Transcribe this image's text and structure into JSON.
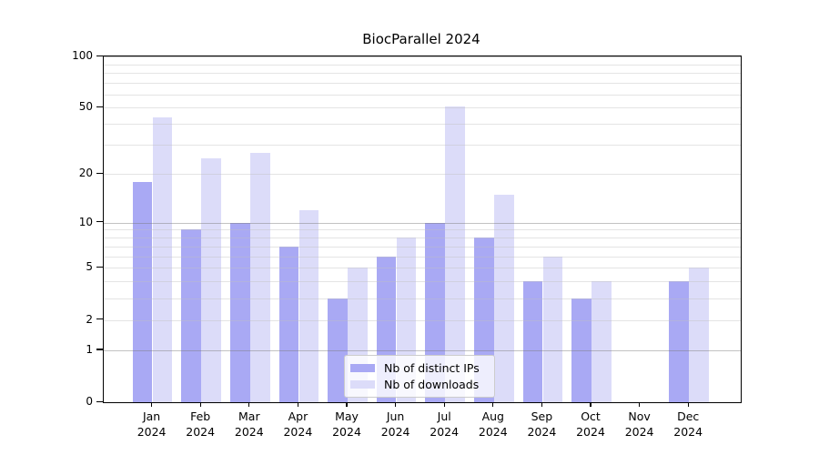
{
  "title": "BiocParallel 2024",
  "colors": {
    "bar_distinct_ips": "#a9a9f4",
    "bar_downloads": "#dcdcf9",
    "grid_major": "#c8c8c8",
    "grid_minor": "#e9e9e9",
    "axis": "#000000",
    "legend_border": "#cccccc"
  },
  "chart_data": {
    "type": "bar",
    "title": "BiocParallel 2024",
    "categories": [
      "Jan 2024",
      "Feb 2024",
      "Mar 2024",
      "Apr 2024",
      "May 2024",
      "Jun 2024",
      "Jul 2024",
      "Aug 2024",
      "Sep 2024",
      "Oct 2024",
      "Nov 2024",
      "Dec 2024"
    ],
    "x_tick_labels": [
      [
        "Jan",
        "2024"
      ],
      [
        "Feb",
        "2024"
      ],
      [
        "Mar",
        "2024"
      ],
      [
        "Apr",
        "2024"
      ],
      [
        "May",
        "2024"
      ],
      [
        "Jun",
        "2024"
      ],
      [
        "Jul",
        "2024"
      ],
      [
        "Aug",
        "2024"
      ],
      [
        "Sep",
        "2024"
      ],
      [
        "Oct",
        "2024"
      ],
      [
        "Nov",
        "2024"
      ],
      [
        "Dec",
        "2024"
      ]
    ],
    "series": [
      {
        "name": "Nb of distinct IPs",
        "color": "#a9a9f4",
        "values": [
          18,
          9,
          10,
          7,
          3,
          6,
          10,
          8,
          4,
          3,
          0,
          4
        ]
      },
      {
        "name": "Nb of downloads",
        "color": "#dcdcf9",
        "values": [
          44,
          25,
          27,
          12,
          5,
          8,
          51,
          15,
          6,
          4,
          0,
          5
        ]
      }
    ],
    "y_axis": {
      "scale": "log1p",
      "ylim": [
        0,
        100
      ],
      "tick_values": [
        0,
        1,
        2,
        5,
        10,
        20,
        50,
        100
      ],
      "tick_labels": [
        "0",
        "1",
        "2",
        "5",
        "10",
        "20",
        "50",
        "100"
      ]
    },
    "gridlines": {
      "major": [
        1,
        10,
        100
      ],
      "minor": [
        2,
        3,
        4,
        5,
        6,
        7,
        8,
        9,
        20,
        30,
        40,
        50,
        60,
        70,
        80,
        90
      ]
    },
    "grid": true,
    "legend_position": "lower center"
  }
}
